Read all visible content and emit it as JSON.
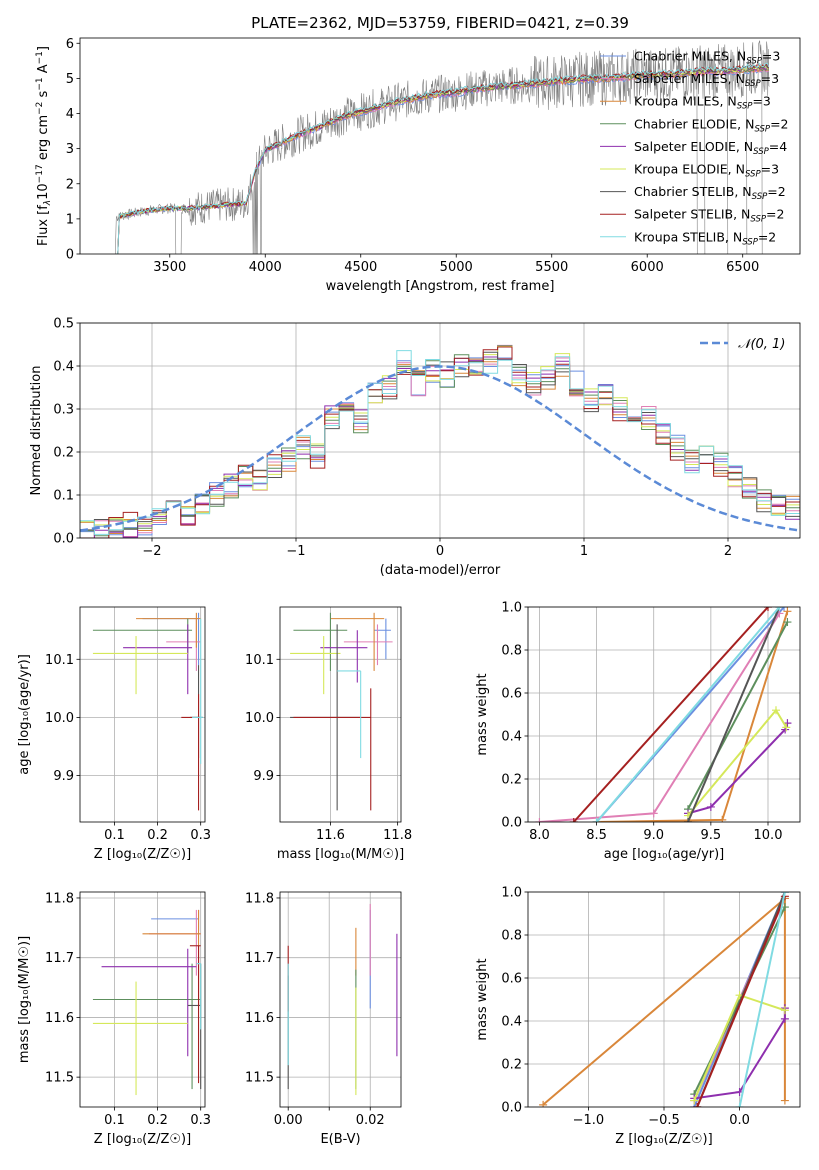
{
  "colors": {
    "Chabrier MILES": "#6b8fe0",
    "Salpeter MILES": "#e07fb5",
    "Kroupa MILES": "#d9873a",
    "Chabrier ELODIE": "#5d8f5d",
    "Salpeter ELODIE": "#8e2fae",
    "Kroupa ELODIE": "#d5e85a",
    "Chabrier STELIB": "#555555",
    "Salpeter STELIB": "#a52020",
    "Kroupa STELIB": "#80dbe2",
    "gaussian": "#5b8ad6",
    "spectrum_data": "#808080"
  },
  "chart_data": [
    {
      "id": "spectrum",
      "type": "line",
      "title": "PLATE=2362, MJD=53759, FIBERID=0421, z=0.39",
      "xlabel": "wavelength [Angstrom, rest frame]",
      "ylabel_parts": [
        "Flux [f",
        "λ",
        "10",
        "−17",
        " erg cm",
        "−2",
        " s",
        "−1",
        " A",
        "−1",
        "]"
      ],
      "xlim": [
        3030,
        6800
      ],
      "ylim": [
        0,
        6.15
      ],
      "xticks": [
        3500,
        4000,
        4500,
        5000,
        5500,
        6000,
        6500
      ],
      "yticks": [
        0,
        1,
        2,
        3,
        4,
        5,
        6
      ],
      "grid": false,
      "legend_position": "top-right",
      "legend": [
        {
          "name": "Chabrier MILES",
          "nssp": "3"
        },
        {
          "name": "Salpeter MILES",
          "nssp": "3"
        },
        {
          "name": "Kroupa MILES",
          "nssp": "3"
        },
        {
          "name": "Chabrier ELODIE",
          "nssp": "2"
        },
        {
          "name": "Salpeter ELODIE",
          "nssp": "4"
        },
        {
          "name": "Kroupa ELODIE",
          "nssp": "3"
        },
        {
          "name": "Chabrier STELIB",
          "nssp": "2"
        },
        {
          "name": "Salpeter STELIB",
          "nssp": "2"
        },
        {
          "name": "Kroupa STELIB",
          "nssp": "2"
        }
      ],
      "data_profile": {
        "x": [
          3220,
          3300,
          3400,
          3500,
          3600,
          3700,
          3800,
          3900,
          3950,
          4000,
          4100,
          4200,
          4300,
          4400,
          4500,
          4600,
          4700,
          4800,
          4900,
          5000,
          5100,
          5200,
          5300,
          5400,
          5500,
          5600,
          5700,
          5800,
          5900,
          6000,
          6100,
          6200,
          6300,
          6400,
          6500,
          6600
        ],
        "y": [
          1.05,
          1.15,
          1.25,
          1.3,
          1.3,
          1.35,
          1.4,
          1.45,
          2.4,
          2.95,
          3.2,
          3.45,
          3.65,
          3.9,
          4.05,
          4.2,
          4.35,
          4.45,
          4.55,
          4.6,
          4.7,
          4.75,
          4.8,
          4.85,
          4.9,
          4.95,
          5.0,
          5.0,
          5.05,
          5.1,
          5.1,
          5.15,
          5.2,
          5.2,
          5.25,
          5.3
        ]
      }
    },
    {
      "id": "residuals",
      "type": "bar",
      "xlabel": "(data-model)/error",
      "ylabel": "Normed distribution",
      "xlim": [
        -2.5,
        2.5
      ],
      "ylim": [
        0,
        0.5
      ],
      "xticks": [
        -2,
        -1,
        0,
        1,
        2
      ],
      "yticks": [
        0.0,
        0.1,
        0.2,
        0.3,
        0.4,
        0.5
      ],
      "grid": true,
      "legend_position": "top-right",
      "legend_label": "𝒩(0, 1)",
      "bin_width": 0.1,
      "bin_start": -2.5,
      "reference_profile": [
        0.018,
        0.02,
        0.025,
        0.03,
        0.028,
        0.06,
        0.07,
        0.05,
        0.08,
        0.1,
        0.12,
        0.14,
        0.13,
        0.17,
        0.18,
        0.21,
        0.19,
        0.28,
        0.3,
        0.27,
        0.34,
        0.35,
        0.41,
        0.36,
        0.39,
        0.38,
        0.4,
        0.39,
        0.41,
        0.42,
        0.38,
        0.36,
        0.37,
        0.4,
        0.36,
        0.32,
        0.33,
        0.3,
        0.29,
        0.28,
        0.24,
        0.21,
        0.18,
        0.2,
        0.17,
        0.14,
        0.12,
        0.09,
        0.08,
        0.07,
        0.06,
        0.07,
        0.06,
        0.05,
        0.05,
        0.04,
        0.035,
        0.03,
        0.025,
        0.03
      ]
    },
    {
      "id": "age_vs_Z",
      "type": "scatter",
      "xlabel": "Z [log₁₀(Z/Z☉)]",
      "ylabel": "age  [log₁₀(age/yr)]",
      "xlim": [
        0.02,
        0.31
      ],
      "ylim": [
        9.82,
        10.19
      ],
      "xticks": [
        0.1,
        0.2,
        0.3
      ],
      "yticks": [
        9.9,
        10.0,
        10.1
      ],
      "grid": true,
      "points": [
        {
          "model": "Chabrier MILES",
          "x": 0.295,
          "xerr": [
            0.13,
            0.0
          ],
          "y": 10.17,
          "yerr": [
            0.08,
            0.01
          ]
        },
        {
          "model": "Salpeter MILES",
          "x": 0.29,
          "xerr": [
            0.07,
            0.01
          ],
          "y": 10.13,
          "yerr": [
            0.05,
            0.04
          ]
        },
        {
          "model": "Kroupa MILES",
          "x": 0.29,
          "xerr": [
            0.14,
            0.01
          ],
          "y": 10.17,
          "yerr": [
            0.05,
            0.01
          ]
        },
        {
          "model": "Chabrier ELODIE",
          "x": 0.27,
          "xerr": [
            0.22,
            0.01
          ],
          "y": 10.15,
          "yerr": [
            0.04,
            0.02
          ]
        },
        {
          "model": "Salpeter ELODIE",
          "x": 0.27,
          "xerr": [
            0.15,
            0.01
          ],
          "y": 10.12,
          "yerr": [
            0.08,
            0.04
          ]
        },
        {
          "model": "Kroupa ELODIE",
          "x": 0.15,
          "xerr": [
            0.1,
            0.12
          ],
          "y": 10.11,
          "yerr": [
            0.07,
            0.03
          ]
        },
        {
          "model": "Chabrier STELIB",
          "x": 0.295,
          "xerr": [
            0.02,
            0.01
          ],
          "y": 10.0,
          "yerr": [
            0.07,
            0.09
          ]
        },
        {
          "model": "Salpeter STELIB",
          "x": 0.295,
          "xerr": [
            0.04,
            0.005
          ],
          "y": 10.0,
          "yerr": [
            0.16,
            0.04
          ]
        },
        {
          "model": "Kroupa STELIB",
          "x": 0.3,
          "xerr": [
            0.02,
            0.005
          ],
          "y": 10.0,
          "yerr": [
            0.08,
            0.17
          ]
        }
      ]
    },
    {
      "id": "age_vs_mass",
      "type": "scatter",
      "xlabel": "mass [log₁₀(M/M☉)]",
      "ylabel": "",
      "xlim": [
        11.45,
        11.81
      ],
      "ylim": [
        9.82,
        10.19
      ],
      "xticks": [
        11.6,
        11.8
      ],
      "yticks": [
        9.9,
        10.0,
        10.1
      ],
      "grid": true,
      "points": [
        {
          "model": "Chabrier MILES",
          "x": 11.765,
          "xerr": [
            0.035,
            0.015
          ],
          "y": 10.15,
          "yerr": [
            0.05,
            0.02
          ]
        },
        {
          "model": "Salpeter MILES",
          "x": 11.74,
          "xerr": [
            0.1,
            0.045
          ],
          "y": 10.13,
          "yerr": [
            0.04,
            0.03
          ]
        },
        {
          "model": "Kroupa MILES",
          "x": 11.73,
          "xerr": [
            0.13,
            0.03
          ],
          "y": 10.17,
          "yerr": [
            0.09,
            0.01
          ]
        },
        {
          "model": "Chabrier ELODIE",
          "x": 11.6,
          "xerr": [
            0.11,
            0.05
          ],
          "y": 10.15,
          "yerr": [
            0.07,
            0.03
          ]
        },
        {
          "model": "Salpeter ELODIE",
          "x": 11.68,
          "xerr": [
            0.11,
            0.03
          ],
          "y": 10.12,
          "yerr": [
            0.06,
            0.03
          ]
        },
        {
          "model": "Kroupa ELODIE",
          "x": 11.58,
          "xerr": [
            0.1,
            0.05
          ],
          "y": 10.11,
          "yerr": [
            0.07,
            0.03
          ]
        },
        {
          "model": "Chabrier STELIB",
          "x": 11.62,
          "xerr": [
            0.14,
            0.07
          ],
          "y": 10.0,
          "yerr": [
            0.16,
            0.16
          ]
        },
        {
          "model": "Salpeter STELIB",
          "x": 11.72,
          "xerr": [
            0.23,
            0.0
          ],
          "y": 10.0,
          "yerr": [
            0.16,
            0.05
          ]
        },
        {
          "model": "Kroupa STELIB",
          "x": 11.69,
          "xerr": [
            0.07,
            0.0
          ],
          "y": 10.08,
          "yerr": [
            0.15,
            0.0
          ]
        }
      ]
    },
    {
      "id": "mass_weight_vs_age",
      "type": "line",
      "xlabel": "age  [log₁₀(age/yr)]",
      "ylabel": "mass weight",
      "xlim": [
        7.9,
        10.28
      ],
      "ylim": [
        0.0,
        1.0
      ],
      "xticks": [
        8.0,
        8.5,
        9.0,
        9.5,
        10.0
      ],
      "yticks": [
        0.0,
        0.2,
        0.4,
        0.6,
        0.8,
        1.0
      ],
      "grid": true,
      "series": [
        {
          "model": "Chabrier MILES",
          "x": [
            8.5,
            10.14
          ],
          "y": [
            0.0,
            1.0
          ]
        },
        {
          "model": "Salpeter MILES",
          "x": [
            8.0,
            9.0,
            10.1
          ],
          "y": [
            0.0,
            0.04,
            0.97
          ]
        },
        {
          "model": "Kroupa MILES",
          "x": [
            8.5,
            9.6,
            10.17
          ],
          "y": [
            0.0,
            0.01,
            0.98
          ]
        },
        {
          "model": "Chabrier ELODIE",
          "x": [
            9.3,
            10.17
          ],
          "y": [
            0.06,
            0.93
          ]
        },
        {
          "model": "Salpeter ELODIE",
          "x": [
            9.3,
            9.5,
            10.15,
            10.17
          ],
          "y": [
            0.04,
            0.07,
            0.43,
            0.46
          ]
        },
        {
          "model": "Kroupa ELODIE",
          "x": [
            9.3,
            10.07,
            10.16
          ],
          "y": [
            0.03,
            0.52,
            0.44
          ]
        },
        {
          "model": "Chabrier STELIB",
          "x": [
            9.3,
            10.1
          ],
          "y": [
            0.0,
            1.0
          ]
        },
        {
          "model": "Salpeter STELIB",
          "x": [
            8.3,
            10.0
          ],
          "y": [
            0.0,
            1.0
          ]
        },
        {
          "model": "Kroupa STELIB",
          "x": [
            8.5,
            10.1
          ],
          "y": [
            0.0,
            1.0
          ]
        }
      ]
    },
    {
      "id": "mass_vs_Z",
      "type": "scatter",
      "xlabel": "Z [log₁₀(Z/Z☉)]",
      "ylabel": "mass [log₁₀(M/M☉)]",
      "xlim": [
        0.02,
        0.31
      ],
      "ylim": [
        11.45,
        11.81
      ],
      "xticks": [
        0.1,
        0.2,
        0.3
      ],
      "yticks": [
        11.5,
        11.6,
        11.7,
        11.8
      ],
      "grid": true,
      "points": [
        {
          "model": "Chabrier MILES",
          "x": 0.295,
          "xerr": [
            0.11,
            0.0
          ],
          "y": 11.765,
          "yerr": [
            0.02,
            0.015
          ]
        },
        {
          "model": "Salpeter MILES",
          "x": 0.29,
          "xerr": [
            0.11,
            0.01
          ],
          "y": 11.74,
          "yerr": [
            0.07,
            0.04
          ]
        },
        {
          "model": "Kroupa MILES",
          "x": 0.295,
          "xerr": [
            0.13,
            0.005
          ],
          "y": 11.74,
          "yerr": [
            0.12,
            0.04
          ]
        },
        {
          "model": "Chabrier ELODIE",
          "x": 0.28,
          "xerr": [
            0.23,
            0.02
          ],
          "y": 11.63,
          "yerr": [
            0.15,
            0.06
          ]
        },
        {
          "model": "Salpeter ELODIE",
          "x": 0.27,
          "xerr": [
            0.2,
            0.02
          ],
          "y": 11.685,
          "yerr": [
            0.15,
            0.03
          ]
        },
        {
          "model": "Kroupa ELODIE",
          "x": 0.15,
          "xerr": [
            0.1,
            0.12
          ],
          "y": 11.59,
          "yerr": [
            0.12,
            0.07
          ]
        },
        {
          "model": "Chabrier STELIB",
          "x": 0.3,
          "xerr": [
            0.03,
            0.0
          ],
          "y": 11.62,
          "yerr": [
            0.14,
            0.07
          ]
        },
        {
          "model": "Salpeter STELIB",
          "x": 0.295,
          "xerr": [
            0.02,
            0.005
          ],
          "y": 11.72,
          "yerr": [
            0.23,
            0.0
          ]
        },
        {
          "model": "Kroupa STELIB",
          "x": 0.3,
          "xerr": [
            0.01,
            0.0
          ],
          "y": 11.69,
          "yerr": [
            0.11,
            0.0
          ]
        }
      ]
    },
    {
      "id": "mass_vs_EBV",
      "type": "scatter",
      "xlabel": "E(B-V)",
      "ylabel": "",
      "xlim": [
        -0.002,
        0.0275
      ],
      "ylim": [
        11.45,
        11.81
      ],
      "xticks": [
        0.0,
        0.01,
        0.02
      ],
      "yticks": [
        11.5,
        11.6,
        11.7,
        11.8
      ],
      "xtick_labels": [
        "0.00",
        "",
        "0.02"
      ],
      "grid": true,
      "points": [
        {
          "model": "Chabrier MILES",
          "x": 0.02,
          "xerr": [
            0,
            0
          ],
          "y": 11.765,
          "yerr": [
            0.15,
            0.015
          ]
        },
        {
          "model": "Salpeter MILES",
          "x": 0.02,
          "xerr": [
            0,
            0
          ],
          "y": 11.74,
          "yerr": [
            0.07,
            0.05
          ]
        },
        {
          "model": "Kroupa MILES",
          "x": 0.0165,
          "xerr": [
            0,
            0
          ],
          "y": 11.73,
          "yerr": [
            0.06,
            0.02
          ]
        },
        {
          "model": "Chabrier ELODIE",
          "x": 0.0165,
          "xerr": [
            0,
            0
          ],
          "y": 11.63,
          "yerr": [
            0.15,
            0.05
          ]
        },
        {
          "model": "Salpeter ELODIE",
          "x": 0.0265,
          "xerr": [
            0,
            0
          ],
          "y": 11.685,
          "yerr": [
            0.15,
            0.055
          ]
        },
        {
          "model": "Kroupa ELODIE",
          "x": 0.0165,
          "xerr": [
            0,
            0
          ],
          "y": 11.59,
          "yerr": [
            0.12,
            0.06
          ]
        },
        {
          "model": "Chabrier STELIB",
          "x": 0.0,
          "xerr": [
            0,
            0
          ],
          "y": 11.62,
          "yerr": [
            0.14,
            0.05
          ]
        },
        {
          "model": "Salpeter STELIB",
          "x": 0.0,
          "xerr": [
            0,
            0
          ],
          "y": 11.69,
          "yerr": [
            0.08,
            0.03
          ]
        },
        {
          "model": "Kroupa STELIB",
          "x": 0.0,
          "xerr": [
            0,
            0
          ],
          "y": 11.62,
          "yerr": [
            0.1,
            0.07
          ]
        }
      ]
    },
    {
      "id": "mass_weight_vs_Z",
      "type": "line",
      "xlabel": "Z [log₁₀(Z/Z☉)]",
      "ylabel": "mass weight",
      "xlim": [
        -1.4,
        0.4
      ],
      "ylim": [
        0.0,
        1.0
      ],
      "xticks": [
        -1.0,
        -0.5,
        0.0
      ],
      "yticks": [
        0.0,
        0.2,
        0.4,
        0.6,
        0.8,
        1.0
      ],
      "grid": true,
      "series": [
        {
          "model": "Chabrier MILES",
          "x": [
            -0.3,
            0.3
          ],
          "y": [
            0.0,
            1.0
          ]
        },
        {
          "model": "Salpeter MILES",
          "x": [
            -0.3,
            0.3
          ],
          "y": [
            0.03,
            0.97
          ]
        },
        {
          "model": "Kroupa MILES",
          "x": [
            -1.3,
            0.3,
            0.3
          ],
          "y": [
            0.01,
            0.97,
            0.03
          ]
        },
        {
          "model": "Chabrier ELODIE",
          "x": [
            -0.3,
            0.3
          ],
          "y": [
            0.06,
            0.93
          ]
        },
        {
          "model": "Salpeter ELODIE",
          "x": [
            -0.3,
            0.0,
            0.3,
            0.3
          ],
          "y": [
            0.04,
            0.07,
            0.41,
            0.46
          ]
        },
        {
          "model": "Kroupa ELODIE",
          "x": [
            -0.3,
            0.0,
            0.3
          ],
          "y": [
            0.03,
            0.52,
            0.45
          ]
        },
        {
          "model": "Chabrier STELIB",
          "x": [
            -0.28,
            0.3
          ],
          "y": [
            0.0,
            1.0
          ]
        },
        {
          "model": "Salpeter STELIB",
          "x": [
            -0.28,
            0.3
          ],
          "y": [
            0.0,
            0.98
          ]
        },
        {
          "model": "Kroupa STELIB",
          "x": [
            0.0,
            0.3
          ],
          "y": [
            0.0,
            1.0
          ]
        }
      ]
    }
  ]
}
